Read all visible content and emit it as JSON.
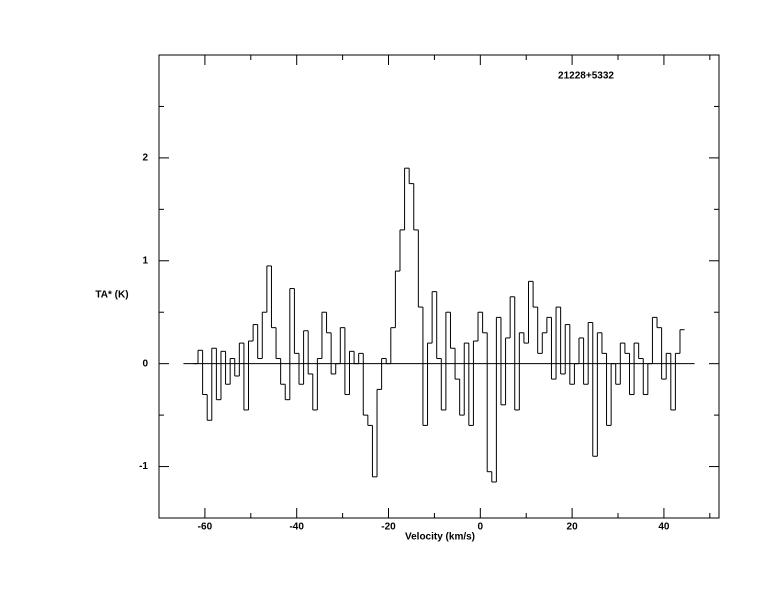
{
  "chart_data": {
    "type": "step",
    "title": "21228+5332",
    "x_label": "Velocity (km/s)",
    "y_label": "TA* (K)",
    "x": [
      -62,
      -61,
      -60,
      -59,
      -58,
      -57,
      -56,
      -55,
      -54,
      -53,
      -52,
      -51,
      -50,
      -49,
      -48,
      -47,
      -46,
      -45,
      -44,
      -43,
      -42,
      -41,
      -40,
      -39,
      -38,
      -37,
      -36,
      -35,
      -34,
      -33,
      -32,
      -31,
      -30,
      -29,
      -28,
      -27,
      -26,
      -25,
      -24,
      -23,
      -22,
      -21,
      -20,
      -19,
      -18,
      -17,
      -16,
      -15,
      -14,
      -13,
      -12,
      -11,
      -10,
      -9,
      -8,
      -7,
      -6,
      -5,
      -4,
      -3,
      -2,
      -1,
      0,
      1,
      2,
      3,
      4,
      5,
      6,
      7,
      8,
      9,
      10,
      11,
      12,
      13,
      14,
      15,
      16,
      17,
      18,
      19,
      20,
      21,
      22,
      23,
      24,
      25,
      26,
      27,
      28,
      29,
      30,
      31,
      32,
      33,
      34,
      35,
      36,
      37,
      38,
      39,
      40,
      41,
      42,
      43,
      44
    ],
    "values": [
      0.0,
      0.13,
      -0.3,
      -0.55,
      0.15,
      -0.35,
      0.12,
      -0.2,
      0.05,
      -0.12,
      0.2,
      -0.45,
      0.22,
      0.38,
      0.05,
      0.5,
      0.95,
      0.35,
      0.05,
      -0.2,
      -0.35,
      0.73,
      0.1,
      -0.2,
      0.32,
      -0.1,
      -0.45,
      0.05,
      0.5,
      0.3,
      -0.1,
      0.0,
      0.35,
      -0.3,
      0.12,
      0.0,
      0.1,
      -0.5,
      -0.6,
      -1.1,
      -0.25,
      0.05,
      0.0,
      0.35,
      0.9,
      1.3,
      1.9,
      1.75,
      1.3,
      0.55,
      -0.6,
      0.2,
      0.7,
      0.05,
      -0.45,
      0.5,
      0.15,
      -0.15,
      -0.5,
      0.2,
      -0.6,
      0.22,
      0.5,
      0.3,
      -1.05,
      -1.15,
      0.45,
      -0.4,
      0.25,
      0.65,
      -0.45,
      0.3,
      0.2,
      0.8,
      0.55,
      0.1,
      0.3,
      0.45,
      -0.15,
      0.55,
      -0.1,
      0.38,
      -0.2,
      0.0,
      0.25,
      -0.2,
      0.4,
      -0.9,
      0.3,
      0.1,
      -0.6,
      0.0,
      -0.2,
      0.2,
      0.1,
      -0.3,
      0.2,
      0.05,
      -0.3,
      0.0,
      0.45,
      0.35,
      -0.15,
      0.1,
      -0.45,
      0.1,
      0.33
    ],
    "color": "#000000",
    "xlim": [
      -70,
      52
    ],
    "ylim": [
      -1.5,
      3
    ],
    "xticks": [
      -60,
      -40,
      -20,
      0,
      20,
      40
    ],
    "yticks": [
      -1,
      0,
      1,
      2
    ],
    "xticks_minor": [
      -70,
      -50,
      -30,
      -10,
      10,
      30,
      50
    ],
    "yticks_minor": [
      -1.5,
      -0.5,
      0.5,
      1.5,
      2.5
    ],
    "zero_line": 0
  }
}
